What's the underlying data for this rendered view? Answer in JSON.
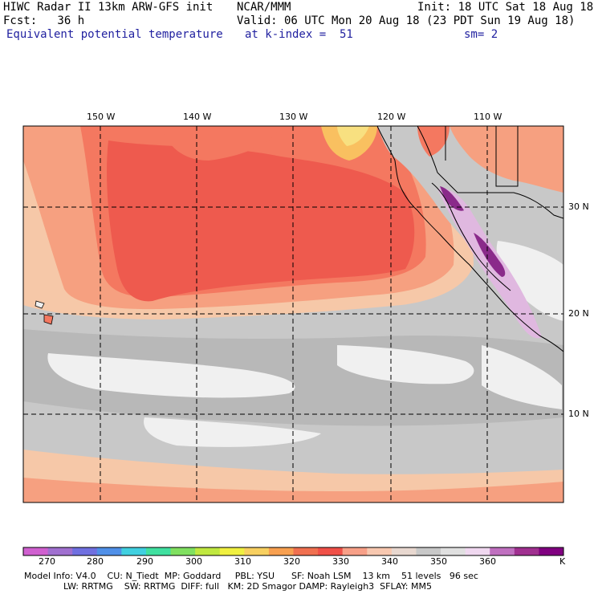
{
  "header": {
    "line1_left": "HIWC Radar II 13km ARW-GFS init",
    "line1_mid": "NCAR/MMM",
    "line1_right": "Init: 18 UTC Sat 18 Aug 18",
    "line2_left": "Fcst:   36 h",
    "line2_right": "Valid: 06 UTC Mon 20 Aug 18 (23 PDT Sun 19 Aug 18)",
    "line3_left": "Equivalent potential temperature",
    "line3_mid": "at k-index =  51",
    "line3_right": "sm= 2",
    "title_color": "#1f1f9f"
  },
  "map": {
    "lon_labels": [
      "150 W",
      "140 W",
      "130 W",
      "120 W",
      "110 W"
    ],
    "lat_labels": [
      "30 N",
      "20 N",
      "10 N"
    ],
    "colors": {
      "gray_330s": "#a9a9a9",
      "gray_light": "#c8c8c8",
      "white": "#f0f0f0",
      "peach": "#f6c8a8",
      "salmon": "#f6a080",
      "coral": "#f47860",
      "red": "#ee5a4e",
      "orange_light": "#f9c060",
      "lavender": "#e0b8e0",
      "purple": "#8a2a8a",
      "land": "#f0f0f0"
    }
  },
  "colorbar": {
    "unit": "K",
    "tick_labels": [
      "270",
      "280",
      "290",
      "300",
      "310",
      "320",
      "330",
      "340",
      "350",
      "360"
    ],
    "colors": [
      "#d060d0",
      "#a070d0",
      "#7070e0",
      "#5090e8",
      "#40d0e0",
      "#40e0a0",
      "#80e060",
      "#c0e840",
      "#f0f040",
      "#f8d060",
      "#f8a050",
      "#f07050",
      "#f05048",
      "#f8a088",
      "#f8c8b0",
      "#e8d8d0",
      "#c8c8c8",
      "#e0e0e0",
      "#f0d8f0",
      "#c070c0",
      "#a03090",
      "#800080"
    ]
  },
  "footer": {
    "line1": "Model Info: V4.0    CU: N_Tiedt  MP: Goddard     PBL: YSU      SF: Noah LSM    13 km    51 levels   96 sec",
    "line2": "              LW: RRTMG    SW: RRTMG  DIFF: full   KM: 2D Smagor DAMP: Rayleigh3  SFLAY: MM5"
  }
}
